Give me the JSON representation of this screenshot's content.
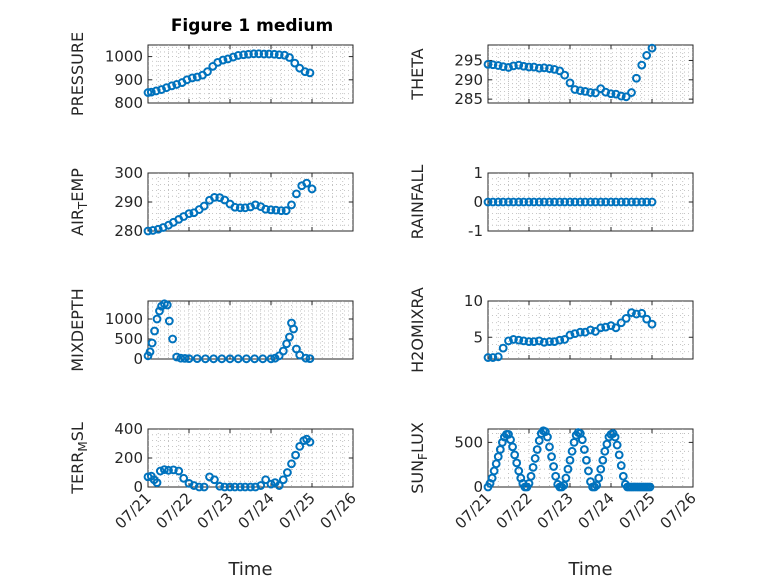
{
  "figure_title": "Figure 1 medium",
  "colors": {
    "marker": "#0072BD",
    "axes": "#262626",
    "grid": "#b4b4b4"
  },
  "chart_data": [
    {
      "type": "scatter",
      "ylabel": "PRESSURE",
      "title": "Figure 1 medium",
      "ylim": [
        800,
        1050
      ],
      "yticks": [
        800,
        900,
        1000
      ],
      "xlim": [
        0,
        5
      ],
      "xticks": [
        "07/21",
        "07/22",
        "07/23",
        "07/24",
        "07/25",
        "07/26"
      ],
      "xlabel": "",
      "grid": true,
      "x": [
        0,
        0.08,
        0.2,
        0.33,
        0.45,
        0.58,
        0.7,
        0.83,
        0.95,
        1.08,
        1.2,
        1.33,
        1.45,
        1.58,
        1.7,
        1.83,
        1.95,
        2.08,
        2.2,
        2.33,
        2.45,
        2.58,
        2.7,
        2.83,
        2.95,
        3.08,
        3.2,
        3.33,
        3.45,
        3.58,
        3.7,
        3.83,
        3.95
      ],
      "y": [
        845,
        847,
        852,
        858,
        866,
        874,
        880,
        888,
        900,
        908,
        912,
        920,
        935,
        958,
        975,
        985,
        990,
        998,
        1005,
        1008,
        1010,
        1012,
        1012,
        1011,
        1011,
        1010,
        1008,
        1006,
        996,
        972,
        950,
        935,
        930
      ]
    },
    {
      "type": "scatter",
      "ylabel": "THETA",
      "ylim": [
        284,
        299
      ],
      "yticks": [
        285,
        290,
        295
      ],
      "xlim": [
        0,
        5
      ],
      "xticks": [
        "07/21",
        "07/22",
        "07/23",
        "07/24",
        "07/25",
        "07/26"
      ],
      "xlabel": "",
      "grid": true,
      "x": [
        0,
        0.12,
        0.25,
        0.37,
        0.5,
        0.62,
        0.75,
        0.87,
        1,
        1.12,
        1.25,
        1.37,
        1.5,
        1.62,
        1.75,
        1.87,
        2,
        2.12,
        2.25,
        2.37,
        2.5,
        2.62,
        2.75,
        2.87,
        3,
        3.12,
        3.25,
        3.37,
        3.5,
        3.62,
        3.75,
        3.87,
        4
      ],
      "y": [
        294,
        293.9,
        293.7,
        293.4,
        293.2,
        293.6,
        293.8,
        293.5,
        293.3,
        293.3,
        293,
        293.1,
        292.9,
        292.7,
        292.3,
        291.2,
        289.2,
        287.5,
        287.2,
        287,
        286.7,
        286.6,
        287.7,
        286.8,
        286.4,
        286.3,
        285.8,
        285.6,
        286.7,
        290.4,
        293.8,
        296.3,
        298.2
      ]
    },
    {
      "type": "scatter",
      "ylabel": "AIR_TEMP",
      "ylabel_main": "AIR",
      "ylabel_sub": "T",
      "ylabel_rest": "EMP",
      "ylim": [
        280,
        300
      ],
      "yticks": [
        280,
        290,
        300
      ],
      "xlim": [
        0,
        5
      ],
      "xticks": [
        "07/21",
        "07/22",
        "07/23",
        "07/24",
        "07/25",
        "07/26"
      ],
      "xlabel": "",
      "grid": true,
      "x": [
        0,
        0.12,
        0.25,
        0.37,
        0.5,
        0.62,
        0.75,
        0.87,
        1,
        1.12,
        1.25,
        1.37,
        1.5,
        1.62,
        1.75,
        1.87,
        2,
        2.12,
        2.25,
        2.37,
        2.5,
        2.62,
        2.75,
        2.87,
        3,
        3.12,
        3.25,
        3.37,
        3.5,
        3.62,
        3.75,
        3.87,
        4
      ],
      "y": [
        280,
        280.2,
        280.6,
        281.2,
        282,
        283,
        284,
        285,
        286,
        286.3,
        287.4,
        288.6,
        290.6,
        291.6,
        291.5,
        290.7,
        289.3,
        288.2,
        288,
        288,
        288.3,
        289,
        288.4,
        287.5,
        287.3,
        287.2,
        287,
        287,
        289,
        292.8,
        295.6,
        296.5,
        294.5
      ]
    },
    {
      "type": "scatter",
      "ylabel": "RAINFALL",
      "ylim": [
        -1,
        1
      ],
      "yticks": [
        -1,
        0,
        1
      ],
      "xlim": [
        0,
        5
      ],
      "xticks": [
        "07/21",
        "07/22",
        "07/23",
        "07/24",
        "07/25",
        "07/26"
      ],
      "xlabel": "",
      "grid": true,
      "x": [
        0,
        0.12,
        0.25,
        0.37,
        0.5,
        0.62,
        0.75,
        0.87,
        1,
        1.12,
        1.25,
        1.37,
        1.5,
        1.62,
        1.75,
        1.87,
        2,
        2.12,
        2.25,
        2.37,
        2.5,
        2.62,
        2.75,
        2.87,
        3,
        3.12,
        3.25,
        3.37,
        3.5,
        3.62,
        3.75,
        3.87,
        4
      ],
      "y": [
        0,
        0,
        0,
        0,
        0,
        0,
        0,
        0,
        0,
        0,
        0,
        0,
        0,
        0,
        0,
        0,
        0,
        0,
        0,
        0,
        0,
        0,
        0,
        0,
        0,
        0,
        0,
        0,
        0,
        0,
        0,
        0,
        0
      ]
    },
    {
      "type": "scatter",
      "ylabel": "MIXDEPTH",
      "ylim": [
        0,
        1450
      ],
      "yticks": [
        0,
        500,
        1000
      ],
      "xlim": [
        0,
        5
      ],
      "xticks": [
        "07/21",
        "07/22",
        "07/23",
        "07/24",
        "07/25",
        "07/26"
      ],
      "xlabel": "",
      "grid": true,
      "x": [
        0,
        0.05,
        0.1,
        0.16,
        0.22,
        0.28,
        0.33,
        0.4,
        0.47,
        0.52,
        0.6,
        0.7,
        0.8,
        0.9,
        1,
        1.2,
        1.4,
        1.6,
        1.8,
        2,
        2.2,
        2.4,
        2.6,
        2.8,
        3,
        3.1,
        3.2,
        3.3,
        3.38,
        3.45,
        3.5,
        3.55,
        3.62,
        3.7,
        3.85,
        3.95
      ],
      "y": [
        80,
        180,
        400,
        700,
        1000,
        1200,
        1320,
        1380,
        1350,
        950,
        500,
        50,
        20,
        15,
        10,
        10,
        5,
        5,
        5,
        5,
        5,
        5,
        5,
        5,
        5,
        20,
        80,
        200,
        380,
        550,
        900,
        750,
        250,
        100,
        20,
        10
      ]
    },
    {
      "type": "scatter",
      "ylabel": "H2OMIXRA",
      "ylim": [
        2,
        10
      ],
      "yticks": [
        5,
        10
      ],
      "xlim": [
        0,
        5
      ],
      "xticks": [
        "07/21",
        "07/22",
        "07/23",
        "07/24",
        "07/25",
        "07/26"
      ],
      "xlabel": "",
      "grid": true,
      "x": [
        0,
        0.12,
        0.25,
        0.37,
        0.5,
        0.62,
        0.75,
        0.87,
        1,
        1.12,
        1.25,
        1.37,
        1.5,
        1.62,
        1.75,
        1.87,
        2,
        2.12,
        2.25,
        2.37,
        2.5,
        2.62,
        2.75,
        2.87,
        3,
        3.12,
        3.25,
        3.37,
        3.5,
        3.62,
        3.75,
        3.87,
        4
      ],
      "y": [
        2.2,
        2.2,
        2.3,
        3.5,
        4.5,
        4.7,
        4.6,
        4.5,
        4.4,
        4.4,
        4.5,
        4.3,
        4.4,
        4.4,
        4.6,
        4.7,
        5.3,
        5.5,
        5.7,
        5.7,
        6,
        5.8,
        6.3,
        6.4,
        6.6,
        6.3,
        7,
        7.6,
        8.4,
        8.2,
        8.3,
        7.5,
        6.8
      ]
    },
    {
      "type": "scatter",
      "ylabel": "TERR_MSL",
      "ylabel_main": "TERR",
      "ylabel_sub": "M",
      "ylabel_rest": "SL",
      "ylim": [
        0,
        400
      ],
      "yticks": [
        0,
        200,
        400
      ],
      "xlim": [
        0,
        5
      ],
      "xticks": [
        "07/21",
        "07/22",
        "07/23",
        "07/24",
        "07/25",
        "07/26"
      ],
      "xlabel": "Time",
      "grid": true,
      "x": [
        0,
        0.08,
        0.15,
        0.22,
        0.3,
        0.4,
        0.5,
        0.62,
        0.75,
        0.87,
        1,
        1.12,
        1.25,
        1.37,
        1.5,
        1.62,
        1.75,
        1.87,
        2,
        2.12,
        2.25,
        2.37,
        2.5,
        2.62,
        2.75,
        2.87,
        3,
        3.1,
        3.2,
        3.3,
        3.4,
        3.5,
        3.6,
        3.7,
        3.8,
        3.87,
        3.95
      ],
      "y": [
        70,
        75,
        50,
        30,
        110,
        120,
        115,
        118,
        110,
        60,
        25,
        10,
        0,
        0,
        70,
        50,
        5,
        0,
        0,
        0,
        0,
        0,
        0,
        0,
        10,
        50,
        20,
        30,
        10,
        50,
        100,
        160,
        220,
        280,
        320,
        330,
        310
      ]
    },
    {
      "type": "scatter",
      "ylabel": "SUN_FLUX",
      "ylabel_main": "SUN",
      "ylabel_sub": "F",
      "ylabel_rest": "LUX",
      "ylim": [
        0,
        650
      ],
      "yticks": [
        0,
        500
      ],
      "xlim": [
        0,
        5
      ],
      "xticks": [
        "07/21",
        "07/22",
        "07/23",
        "07/24",
        "07/25",
        "07/26"
      ],
      "xlabel": "Time",
      "grid": true,
      "x": [
        0,
        0.05,
        0.1,
        0.15,
        0.2,
        0.25,
        0.3,
        0.35,
        0.4,
        0.45,
        0.5,
        0.55,
        0.6,
        0.65,
        0.7,
        0.75,
        0.8,
        0.85,
        0.9,
        0.95,
        1,
        1.05,
        1.1,
        1.15,
        1.2,
        1.25,
        1.3,
        1.35,
        1.4,
        1.45,
        1.5,
        1.55,
        1.6,
        1.65,
        1.7,
        1.75,
        1.8,
        1.85,
        1.9,
        1.95,
        2,
        2.05,
        2.1,
        2.15,
        2.2,
        2.25,
        2.3,
        2.35,
        2.4,
        2.45,
        2.5,
        2.55,
        2.6,
        2.65,
        2.7,
        2.75,
        2.8,
        2.85,
        2.9,
        2.95,
        3,
        3.05,
        3.1,
        3.15,
        3.2,
        3.25,
        3.3,
        3.35,
        3.4,
        3.45,
        3.5,
        3.55,
        3.6,
        3.65,
        3.7,
        3.75,
        3.8,
        3.85,
        3.9,
        3.95
      ],
      "y": [
        0,
        40,
        100,
        180,
        260,
        340,
        420,
        500,
        560,
        590,
        590,
        530,
        450,
        360,
        270,
        180,
        100,
        40,
        0,
        0,
        40,
        120,
        220,
        320,
        420,
        520,
        600,
        630,
        620,
        560,
        450,
        340,
        230,
        120,
        30,
        0,
        0,
        20,
        100,
        200,
        300,
        400,
        500,
        580,
        610,
        600,
        530,
        420,
        300,
        180,
        60,
        0,
        0,
        20,
        100,
        200,
        300,
        400,
        480,
        560,
        590,
        600,
        560,
        470,
        360,
        240,
        120,
        30,
        0,
        0,
        0,
        0,
        0,
        0,
        0,
        0,
        0,
        0,
        0,
        0
      ]
    }
  ]
}
